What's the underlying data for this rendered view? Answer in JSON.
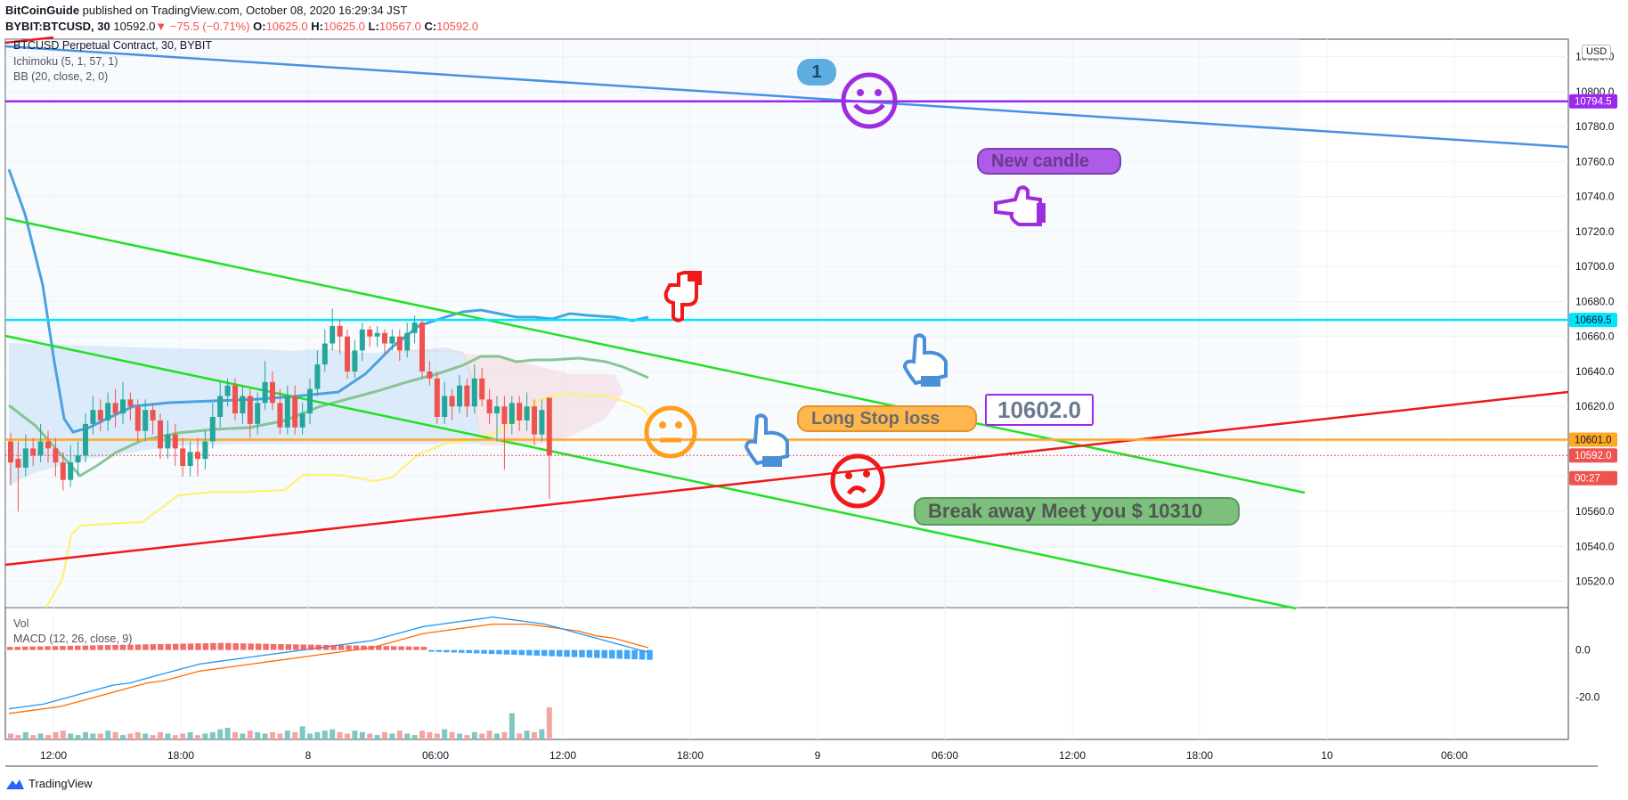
{
  "header": {
    "author": "BitCoinGuide",
    "published": " published on TradingView.com, October 08, 2020 16:29:34 JST",
    "symbol": "BYBIT:BTCUSD, 30",
    "last": "10592.0",
    "change": "−75.5 (−0.71%)",
    "o_label": "O:",
    "o": "10625.0",
    "h_label": "H:",
    "h": "10625.0",
    "l_label": "L:",
    "l": "10567.0",
    "c_label": "C:",
    "c": "10592.0"
  },
  "legend": {
    "title": "BTCUSD Perpetual Contract, 30, BYBIT",
    "ichimoku": "Ichimoku (5, 1, 57, 1)",
    "bb": "BB (20, close, 2, 0)",
    "vol": "Vol",
    "macd": "MACD (12, 26, close, 9)"
  },
  "currency": "USD",
  "footer": {
    "brand": "TradingView"
  },
  "colors": {
    "up": "#26a69a",
    "down": "#ef5350",
    "purple": "#9c27f0",
    "cyan": "#00e5ff",
    "orange": "#ffa726",
    "green_line": "#22e022",
    "red_line": "#f01818",
    "blue_line": "#4a90e2"
  },
  "annotations": {
    "bubble_1": "1",
    "new_candle": "New candle",
    "long_stop": "Long Stop loss",
    "price_box": "10602.0",
    "break_away": "Break away Meet you $ 10310"
  },
  "icons": [
    "smiley-face-icon",
    "neutral-face-icon",
    "sad-face-icon",
    "pointing-hand-icon",
    "tradingview-logo-icon"
  ],
  "chart_data": {
    "type": "candlestick",
    "y_axis": {
      "range": [
        10505,
        10830
      ],
      "ticks": [
        10520,
        10540,
        10560,
        10580,
        10600,
        10620,
        10640,
        10660,
        10680,
        10700,
        10720,
        10740,
        10760,
        10780,
        10800,
        10820
      ]
    },
    "x_axis": {
      "ticks": [
        "12:00",
        "18:00",
        "8",
        "06:00",
        "12:00",
        "18:00",
        "9",
        "06:00",
        "12:00",
        "18:00",
        "10",
        "06:00"
      ]
    },
    "price_labels": [
      {
        "value": 10794.5,
        "text": "10794.5",
        "color": "#9c27f0"
      },
      {
        "value": 10669.5,
        "text": "10669.5",
        "color": "#00e5ff"
      },
      {
        "value": 10601.0,
        "text": "10601.0",
        "color": "#ffa726"
      },
      {
        "value": 10592.0,
        "text": "10592.0",
        "color": "#ef5350"
      },
      {
        "value": 10579.0,
        "text": "00:27",
        "color": "#ef5350"
      }
    ],
    "horizontal_lines": [
      {
        "value": 10794.5,
        "color": "#9c27f0"
      },
      {
        "value": 10669.5,
        "color": "#00e5ff"
      },
      {
        "value": 10601.0,
        "color": "#ffa726"
      }
    ],
    "candles": [
      [
        10600,
        10588,
        10605,
        10575
      ],
      [
        10590,
        10585,
        10600,
        10560
      ],
      [
        10585,
        10596,
        10604,
        10580
      ],
      [
        10596,
        10592,
        10602,
        10586
      ],
      [
        10592,
        10600,
        10610,
        10588
      ],
      [
        10600,
        10596,
        10606,
        10588
      ],
      [
        10596,
        10588,
        10602,
        10580
      ],
      [
        10588,
        10578,
        10594,
        10572
      ],
      [
        10578,
        10588,
        10598,
        10574
      ],
      [
        10588,
        10592,
        10600,
        10580
      ],
      [
        10592,
        10610,
        10616,
        10588
      ],
      [
        10610,
        10618,
        10626,
        10604
      ],
      [
        10618,
        10612,
        10624,
        10606
      ],
      [
        10612,
        10622,
        10628,
        10606
      ],
      [
        10622,
        10616,
        10630,
        10608
      ],
      [
        10616,
        10624,
        10634,
        10610
      ],
      [
        10624,
        10620,
        10628,
        10612
      ],
      [
        10620,
        10606,
        10624,
        10600
      ],
      [
        10606,
        10618,
        10624,
        10600
      ],
      [
        10618,
        10612,
        10622,
        10604
      ],
      [
        10612,
        10596,
        10616,
        10590
      ],
      [
        10596,
        10604,
        10612,
        10590
      ],
      [
        10604,
        10596,
        10610,
        10586
      ],
      [
        10596,
        10586,
        10602,
        10580
      ],
      [
        10586,
        10594,
        10600,
        10580
      ],
      [
        10594,
        10590,
        10602,
        10580
      ],
      [
        10590,
        10600,
        10606,
        10584
      ],
      [
        10600,
        10614,
        10622,
        10596
      ],
      [
        10614,
        10626,
        10634,
        10608
      ],
      [
        10626,
        10632,
        10636,
        10620
      ],
      [
        10632,
        10616,
        10636,
        10612
      ],
      [
        10616,
        10626,
        10632,
        10610
      ],
      [
        10626,
        10610,
        10630,
        10602
      ],
      [
        10610,
        10622,
        10628,
        10604
      ],
      [
        10622,
        10634,
        10646,
        10618
      ],
      [
        10634,
        10622,
        10640,
        10618
      ],
      [
        10622,
        10608,
        10630,
        10604
      ],
      [
        10608,
        10626,
        10632,
        10604
      ],
      [
        10626,
        10608,
        10632,
        10604
      ],
      [
        10608,
        10616,
        10622,
        10604
      ],
      [
        10616,
        10630,
        10636,
        10610
      ],
      [
        10630,
        10644,
        10652,
        10626
      ],
      [
        10644,
        10656,
        10664,
        10640
      ],
      [
        10656,
        10666,
        10676,
        10652
      ],
      [
        10666,
        10660,
        10670,
        10650
      ],
      [
        10660,
        10640,
        10664,
        10636
      ],
      [
        10640,
        10652,
        10658,
        10636
      ],
      [
        10652,
        10664,
        10668,
        10646
      ],
      [
        10664,
        10660,
        10666,
        10654
      ],
      [
        10660,
        10662,
        10666,
        10654
      ],
      [
        10662,
        10656,
        10664,
        10650
      ],
      [
        10656,
        10660,
        10664,
        10652
      ],
      [
        10660,
        10652,
        10664,
        10646
      ],
      [
        10652,
        10662,
        10668,
        10648
      ],
      [
        10662,
        10668,
        10672,
        10656
      ],
      [
        10668,
        10640,
        10670,
        10636
      ],
      [
        10640,
        10636,
        10646,
        10632
      ],
      [
        10636,
        10614,
        10640,
        10610
      ],
      [
        10614,
        10626,
        10634,
        10610
      ],
      [
        10626,
        10620,
        10630,
        10612
      ],
      [
        10620,
        10632,
        10638,
        10616
      ],
      [
        10632,
        10620,
        10636,
        10614
      ],
      [
        10620,
        10636,
        10644,
        10616
      ],
      [
        10636,
        10624,
        10642,
        10620
      ],
      [
        10624,
        10616,
        10630,
        10610
      ],
      [
        10616,
        10620,
        10626,
        10600
      ],
      [
        10620,
        10610,
        10626,
        10584
      ],
      [
        10610,
        10622,
        10626,
        10604
      ],
      [
        10622,
        10612,
        10626,
        10606
      ],
      [
        10612,
        10620,
        10628,
        10606
      ],
      [
        10620,
        10604,
        10624,
        10598
      ],
      [
        10604,
        10618,
        10624,
        10600
      ],
      [
        10625,
        10592,
        10625,
        10567
      ]
    ],
    "volume": [
      4,
      3,
      5,
      3,
      4,
      3,
      5,
      6,
      4,
      3,
      5,
      4,
      4,
      6,
      5,
      3,
      4,
      5,
      4,
      3,
      5,
      4,
      3,
      4,
      5,
      3,
      4,
      5,
      7,
      8,
      5,
      4,
      6,
      5,
      4,
      5,
      4,
      6,
      5,
      9,
      4,
      5,
      6,
      7,
      5,
      4,
      6,
      5,
      4,
      3,
      5,
      4,
      6,
      4,
      3,
      6,
      5,
      4,
      7,
      5,
      4,
      3,
      5,
      4,
      6,
      4,
      5,
      18,
      4,
      6,
      5,
      7,
      22
    ],
    "macd_line": [
      -25,
      -24,
      -23,
      -21,
      -19,
      -17,
      -15,
      -14,
      -12,
      -10,
      -8,
      -6,
      -5,
      -4,
      -3,
      -2,
      -1,
      0,
      1,
      2,
      3,
      4,
      6,
      8,
      10,
      11,
      12,
      13,
      14,
      13,
      12,
      11,
      9,
      7,
      5,
      3,
      1,
      -1
    ],
    "signal_line": [
      -27,
      -26,
      -25,
      -24,
      -22,
      -20,
      -18,
      -16,
      -14,
      -13,
      -11,
      -9,
      -8,
      -7,
      -6,
      -5,
      -4,
      -3,
      -2,
      -1,
      0,
      1,
      3,
      5,
      7,
      8,
      9,
      10,
      11,
      11,
      11,
      10,
      9,
      8,
      6,
      5,
      3,
      1
    ],
    "macd_axis": {
      "range": [
        -38,
        15
      ],
      "ticks": [
        0.0,
        -20.0
      ]
    }
  }
}
